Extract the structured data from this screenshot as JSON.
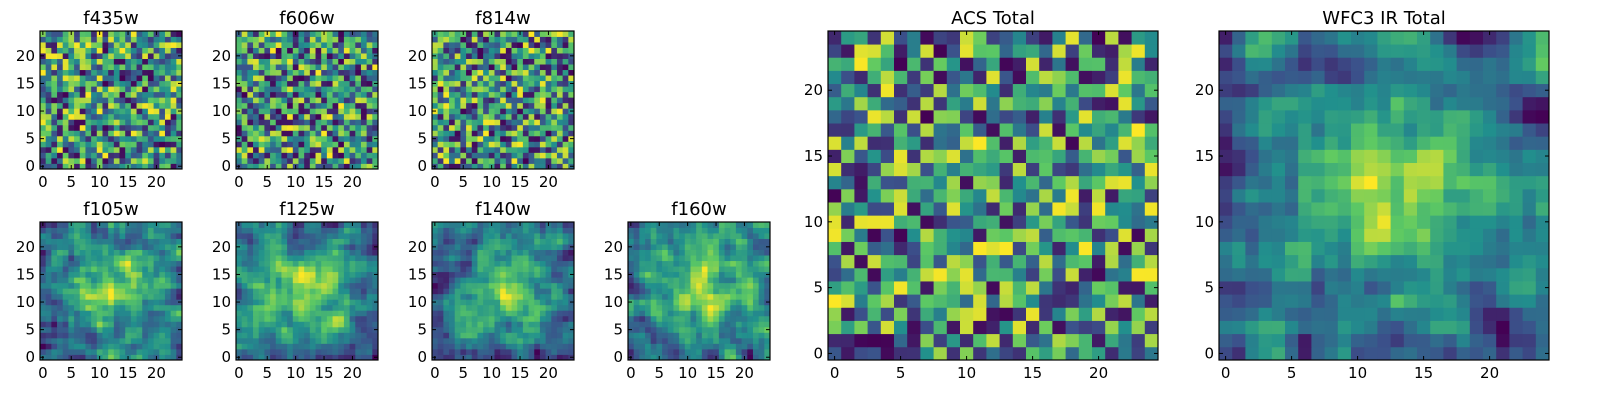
{
  "figure": {
    "colormap": [
      "#440154",
      "#3b528b",
      "#21908d",
      "#5dc963",
      "#fde725"
    ]
  },
  "chart_data": [
    {
      "type": "heatmap",
      "title": "f435w",
      "grid_size": [
        25,
        25
      ],
      "xlim": [
        0,
        24
      ],
      "ylim": [
        0,
        24
      ],
      "xticks": [
        0,
        5,
        10,
        15,
        20
      ],
      "yticks": [
        0,
        5,
        10,
        15,
        20
      ],
      "texture": "noise",
      "seed": 11
    },
    {
      "type": "heatmap",
      "title": "f606w",
      "grid_size": [
        25,
        25
      ],
      "xlim": [
        0,
        24
      ],
      "ylim": [
        0,
        24
      ],
      "xticks": [
        0,
        5,
        10,
        15,
        20
      ],
      "yticks": [
        0,
        5,
        10,
        15,
        20
      ],
      "texture": "noise",
      "seed": 23
    },
    {
      "type": "heatmap",
      "title": "f814w",
      "grid_size": [
        25,
        25
      ],
      "xlim": [
        0,
        24
      ],
      "ylim": [
        0,
        24
      ],
      "xticks": [
        0,
        5,
        10,
        15,
        20
      ],
      "yticks": [
        0,
        5,
        10,
        15,
        20
      ],
      "texture": "noise",
      "seed": 37
    },
    {
      "type": "heatmap",
      "title": "f105w",
      "grid_size": [
        25,
        25
      ],
      "xlim": [
        0,
        24
      ],
      "ylim": [
        0,
        24
      ],
      "xticks": [
        0,
        5,
        10,
        15,
        20
      ],
      "yticks": [
        0,
        5,
        10,
        15,
        20
      ],
      "texture": "smooth",
      "seed": 41
    },
    {
      "type": "heatmap",
      "title": "f125w",
      "grid_size": [
        25,
        25
      ],
      "xlim": [
        0,
        24
      ],
      "ylim": [
        0,
        24
      ],
      "xticks": [
        0,
        5,
        10,
        15,
        20
      ],
      "yticks": [
        0,
        5,
        10,
        15,
        20
      ],
      "texture": "smooth",
      "seed": 53
    },
    {
      "type": "heatmap",
      "title": "f140w",
      "grid_size": [
        25,
        25
      ],
      "xlim": [
        0,
        24
      ],
      "ylim": [
        0,
        24
      ],
      "xticks": [
        0,
        5,
        10,
        15,
        20
      ],
      "yticks": [
        0,
        5,
        10,
        15,
        20
      ],
      "texture": "smooth",
      "seed": 67
    },
    {
      "type": "heatmap",
      "title": "f160w",
      "grid_size": [
        25,
        25
      ],
      "xlim": [
        0,
        24
      ],
      "ylim": [
        0,
        24
      ],
      "xticks": [
        0,
        5,
        10,
        15,
        20
      ],
      "yticks": [
        0,
        5,
        10,
        15,
        20
      ],
      "texture": "smooth",
      "seed": 79
    },
    {
      "type": "heatmap",
      "title": "ACS Total",
      "grid_size": [
        25,
        25
      ],
      "xlim": [
        0,
        24
      ],
      "ylim": [
        0,
        24
      ],
      "xticks": [
        0,
        5,
        10,
        15,
        20
      ],
      "yticks": [
        0,
        5,
        10,
        15,
        20
      ],
      "texture": "noise",
      "seed": 97
    },
    {
      "type": "heatmap",
      "title": "WFC3 IR Total",
      "grid_size": [
        25,
        25
      ],
      "xlim": [
        0,
        24
      ],
      "ylim": [
        0,
        24
      ],
      "xticks": [
        0,
        5,
        10,
        15,
        20
      ],
      "yticks": [
        0,
        5,
        10,
        15,
        20
      ],
      "texture": "smooth",
      "seed": 113
    }
  ]
}
